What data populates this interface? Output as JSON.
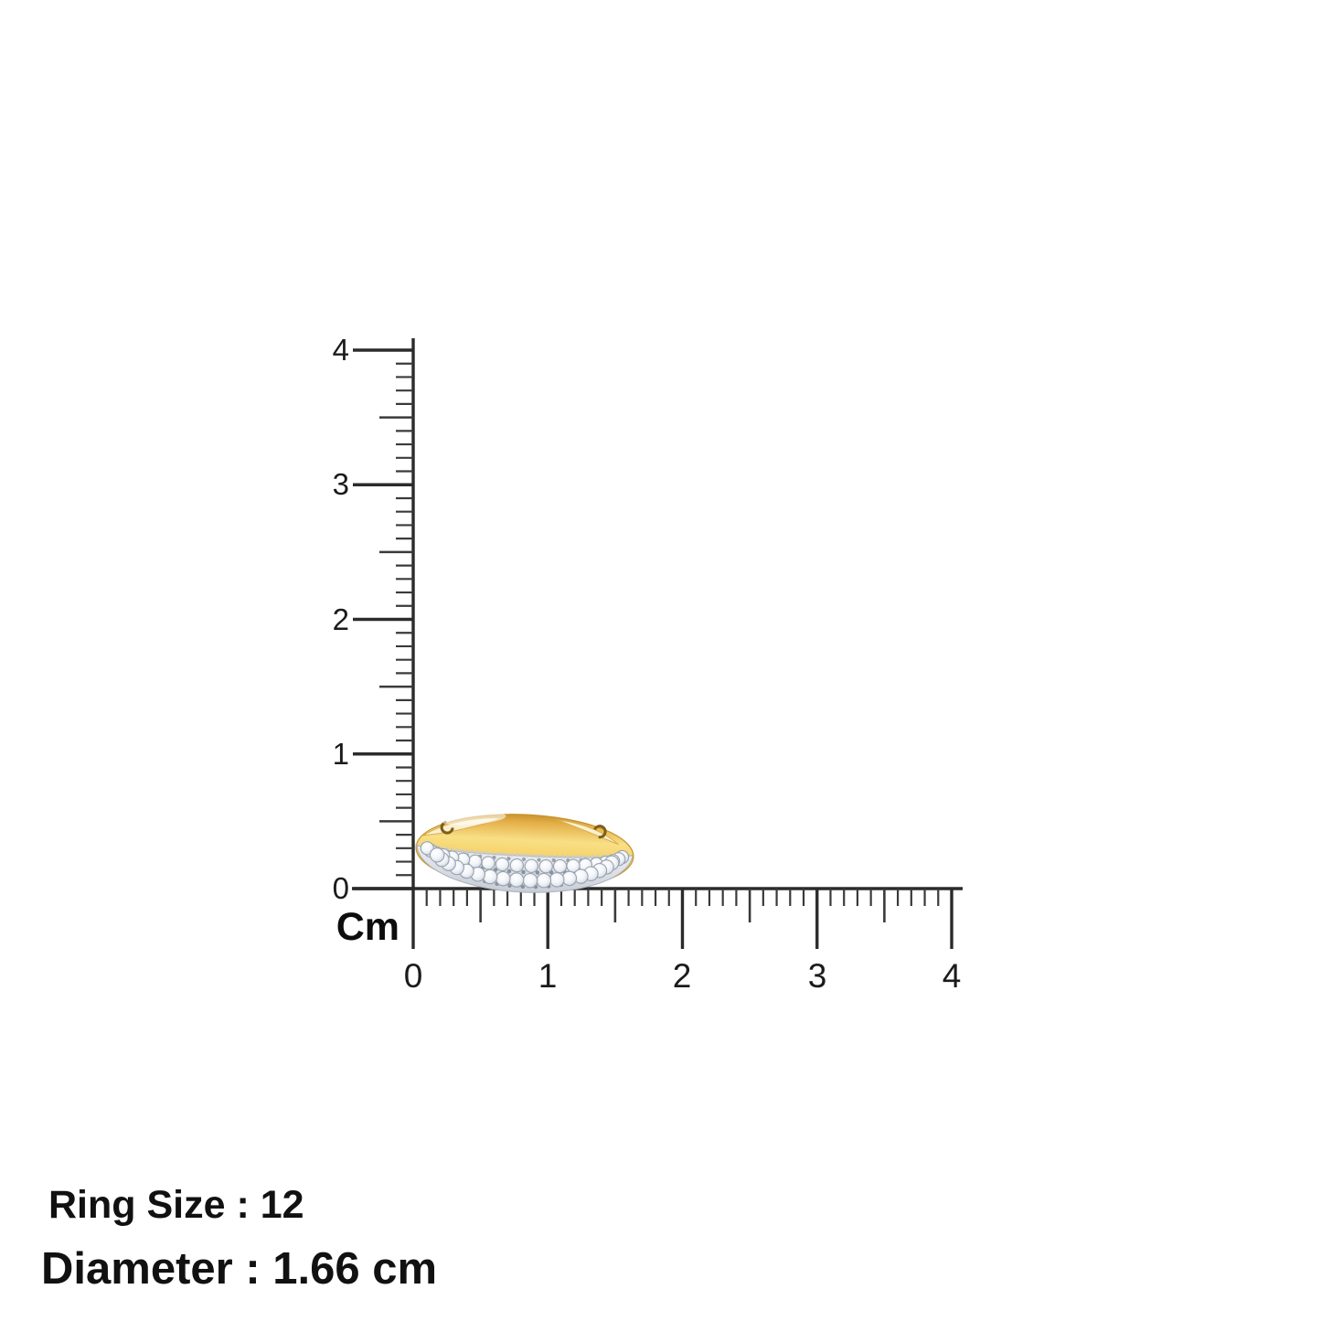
{
  "ruler": {
    "unit_label": "Cm",
    "vertical_labels": [
      "4",
      "3",
      "2",
      "1",
      "0"
    ],
    "horizontal_labels": [
      "0",
      "1",
      "2",
      "3",
      "4"
    ]
  },
  "ring": {
    "description": "Yellow gold band ring with two rows of pave-set round diamonds, shown side-on spanning about 1.6 cm on the ruler",
    "colors": {
      "gold": "#F6D169",
      "gold_deep": "#DFA93C",
      "diamond": "#EFF3F8",
      "setting_silver": "#D9DEE5"
    }
  },
  "caption": {
    "ring_size": "Ring Size : 12",
    "diameter": "Diameter : 1.66 cm"
  }
}
